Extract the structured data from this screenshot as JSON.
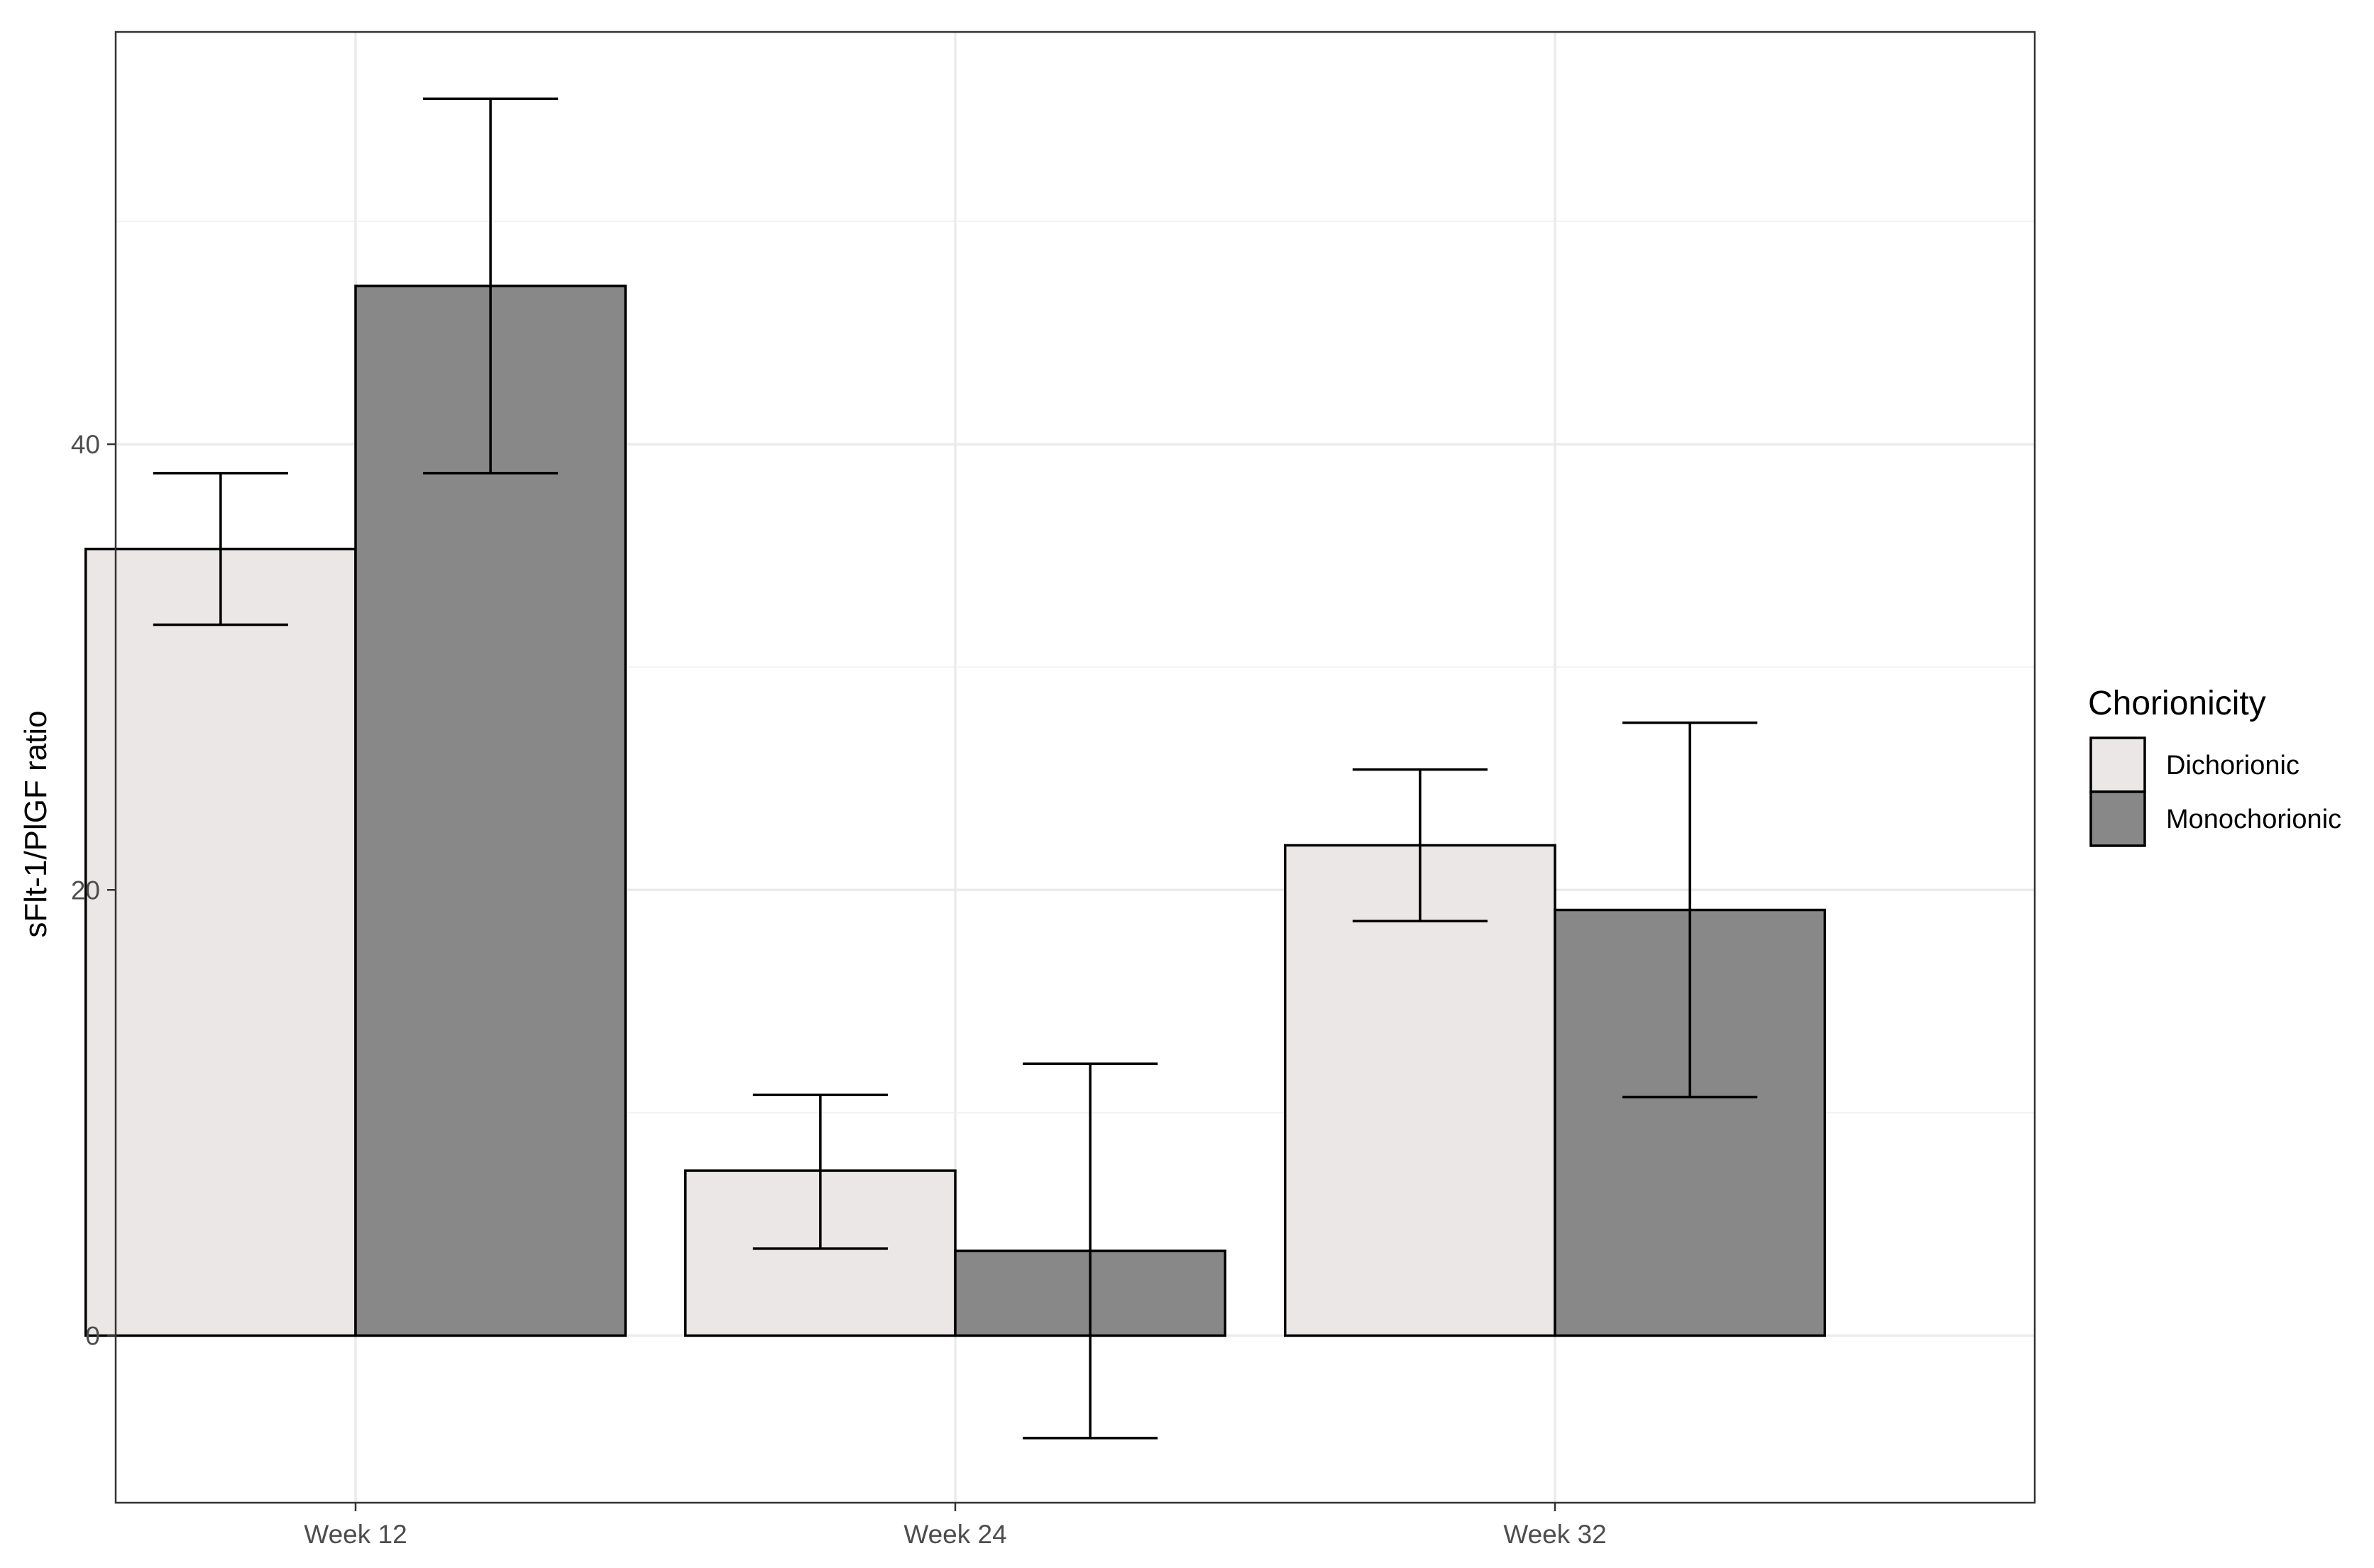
{
  "chart_data": {
    "type": "bar",
    "categories": [
      "Week 12",
      "Week 24",
      "Week 32"
    ],
    "series": [
      {
        "name": "Dichorionic",
        "color": "#ebe7e6",
        "values": [
          35.3,
          7.4,
          22.0
        ],
        "error_low": [
          31.9,
          3.9,
          18.6
        ],
        "error_high": [
          38.7,
          10.8,
          25.4
        ]
      },
      {
        "name": "Monochorionic",
        "color": "#898888",
        "values": [
          47.1,
          3.8,
          19.1
        ],
        "error_low": [
          38.7,
          -4.6,
          10.7
        ],
        "error_high": [
          55.5,
          12.2,
          27.5
        ]
      }
    ],
    "xlabel": "",
    "ylabel": "sFlt-1/PlGF ratio",
    "ylim": [
      -7.5,
      58.5
    ],
    "yticks": [
      0,
      20,
      40
    ],
    "yticks_labels": [
      "0",
      "20",
      "40"
    ],
    "minor_gridlines": [
      10,
      30,
      50
    ],
    "grid": true,
    "legend": {
      "title": "Chorionicity",
      "position": "right",
      "entries": [
        "Dichorionic",
        "Monochorionic"
      ]
    }
  }
}
